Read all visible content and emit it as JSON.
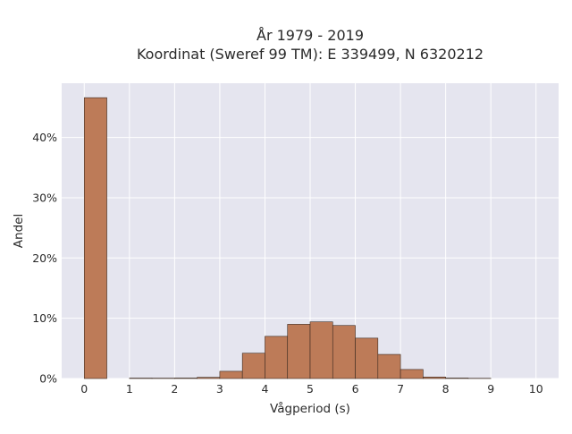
{
  "chart_data": {
    "type": "bar",
    "title": "År 1979 - 2019",
    "subtitle": "Koordinat (Sweref 99 TM): E 339499, N 6320212",
    "xlabel": "Vågperiod (s)",
    "ylabel": "Andel",
    "xlim": [
      -0.5,
      10.5
    ],
    "ylim": [
      0,
      0.49
    ],
    "xticks": [
      0,
      1,
      2,
      3,
      4,
      5,
      6,
      7,
      8,
      9,
      10
    ],
    "xtick_labels": [
      "0",
      "1",
      "2",
      "3",
      "4",
      "5",
      "6",
      "7",
      "8",
      "9",
      "10"
    ],
    "yticks": [
      0,
      0.1,
      0.2,
      0.3,
      0.4
    ],
    "ytick_labels": [
      "0%",
      "10%",
      "20%",
      "30%",
      "40%"
    ],
    "grid": true,
    "bin_width": 0.5,
    "bins": [
      {
        "start": 0.0,
        "value": 0.466
      },
      {
        "start": 0.5,
        "value": 0.0
      },
      {
        "start": 1.0,
        "value": 0.0007
      },
      {
        "start": 1.5,
        "value": 0.0006
      },
      {
        "start": 2.0,
        "value": 0.0008
      },
      {
        "start": 2.5,
        "value": 0.002
      },
      {
        "start": 3.0,
        "value": 0.012
      },
      {
        "start": 3.5,
        "value": 0.042
      },
      {
        "start": 4.0,
        "value": 0.07
      },
      {
        "start": 4.5,
        "value": 0.09
      },
      {
        "start": 5.0,
        "value": 0.094
      },
      {
        "start": 5.5,
        "value": 0.088
      },
      {
        "start": 6.0,
        "value": 0.067
      },
      {
        "start": 6.5,
        "value": 0.04
      },
      {
        "start": 7.0,
        "value": 0.015
      },
      {
        "start": 7.5,
        "value": 0.0025
      },
      {
        "start": 8.0,
        "value": 0.0008
      },
      {
        "start": 8.5,
        "value": 0.0004
      }
    ],
    "colors": {
      "bar_fill": "#bd7b58",
      "bar_stroke": "#3b2a20",
      "plot_bg": "#e5e5ef",
      "grid": "#ffffff"
    }
  }
}
